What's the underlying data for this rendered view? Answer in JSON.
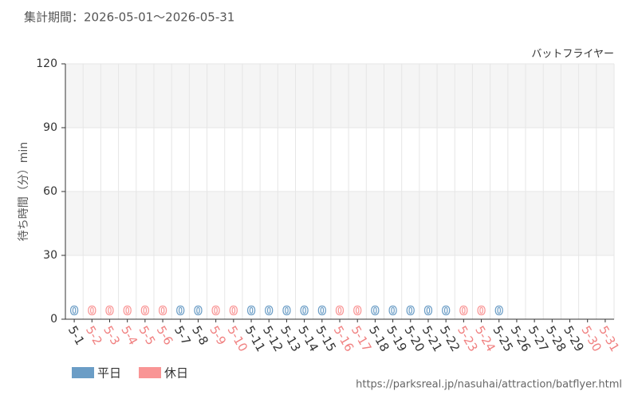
{
  "chart_data": {
    "type": "bar",
    "title": "集計期間：2026-05-01～2026-05-31",
    "subtitle": "バットフライヤー",
    "y_label": "待ち時間（分）min",
    "source": "https://parksreal.jp/nasuhai/attraction/batflyer.html",
    "categories": [
      "5-1",
      "5-2",
      "5-3",
      "5-4",
      "5-5",
      "5-6",
      "5-7",
      "5-8",
      "5-9",
      "5-10",
      "5-11",
      "5-12",
      "5-13",
      "5-14",
      "5-15",
      "5-16",
      "5-17",
      "5-18",
      "5-19",
      "5-20",
      "5-21",
      "5-22",
      "5-23",
      "5-24",
      "5-25",
      "5-26",
      "5-27",
      "5-28",
      "5-29",
      "5-30",
      "5-31"
    ],
    "category_colors": [
      "#333333",
      "#f08080",
      "#f08080",
      "#f08080",
      "#f08080",
      "#f08080",
      "#333333",
      "#333333",
      "#f08080",
      "#f08080",
      "#333333",
      "#333333",
      "#333333",
      "#333333",
      "#333333",
      "#f08080",
      "#f08080",
      "#333333",
      "#333333",
      "#333333",
      "#333333",
      "#333333",
      "#f08080",
      "#f08080",
      "#333333",
      "#333333",
      "#333333",
      "#333333",
      "#333333",
      "#f08080",
      "#f08080"
    ],
    "series": [
      {
        "name": "平日",
        "color": "#6b9dc6",
        "values": [
          0,
          null,
          null,
          null,
          null,
          null,
          0,
          0,
          null,
          null,
          0,
          0,
          0,
          0,
          0,
          null,
          null,
          0,
          0,
          0,
          0,
          0,
          null,
          null,
          0,
          null,
          null,
          null,
          null,
          null,
          null
        ]
      },
      {
        "name": "休日",
        "color": "#f99595",
        "values": [
          null,
          0,
          0,
          0,
          0,
          0,
          null,
          null,
          0,
          0,
          null,
          null,
          null,
          null,
          null,
          0,
          0,
          null,
          null,
          null,
          null,
          null,
          0,
          0,
          null,
          null,
          null,
          null,
          null,
          null,
          null
        ]
      }
    ],
    "ylim": [
      0,
      120
    ],
    "yticks": [
      0,
      30,
      60,
      90,
      120
    ],
    "grid": true,
    "legend": "bottom-left"
  }
}
